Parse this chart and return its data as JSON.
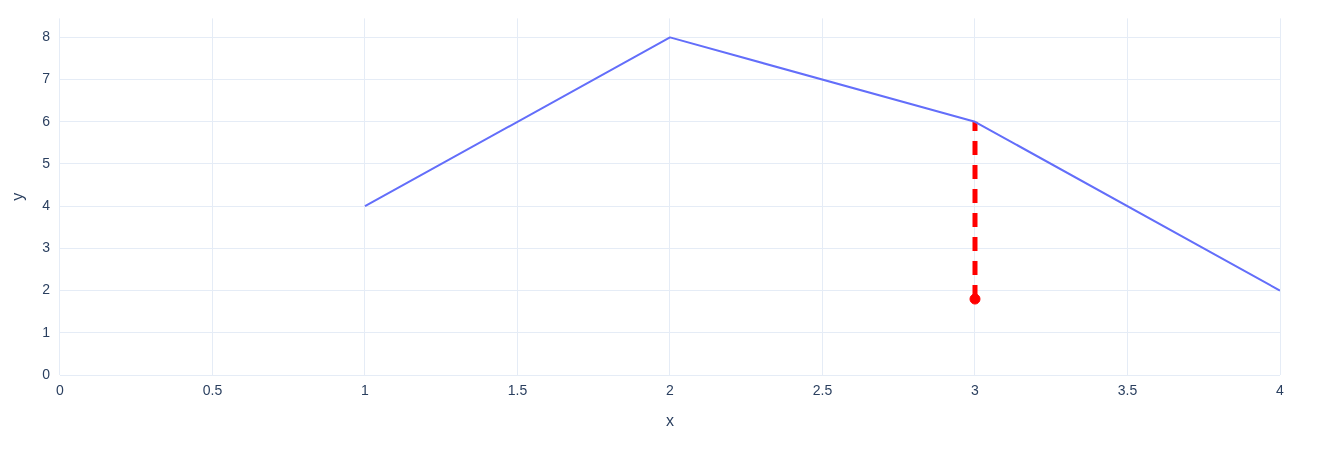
{
  "chart_data": {
    "type": "line",
    "xlabel": "x",
    "ylabel": "y",
    "xlim": [
      0,
      4
    ],
    "xticks": [
      0,
      0.5,
      1,
      1.5,
      2,
      2.5,
      3,
      3.5,
      4
    ],
    "ylim": [
      0,
      8.45
    ],
    "yticks": [
      0,
      1,
      2,
      3,
      4,
      5,
      6,
      7,
      8
    ],
    "grid": true,
    "legend": false,
    "series": [
      {
        "color": "#636efa",
        "x": [
          1,
          2,
          3,
          4
        ],
        "values": [
          4,
          8,
          6,
          2
        ],
        "marker": "none",
        "line_style": "solid"
      },
      {
        "color": "#ff0000",
        "x": [
          3,
          3
        ],
        "values": [
          1.8,
          6
        ],
        "marker": "none",
        "line_style": "dashed"
      },
      {
        "type": "scatter",
        "color": "#ff0000",
        "x": [
          3
        ],
        "values": [
          1.8
        ],
        "marker": "circle"
      }
    ]
  }
}
